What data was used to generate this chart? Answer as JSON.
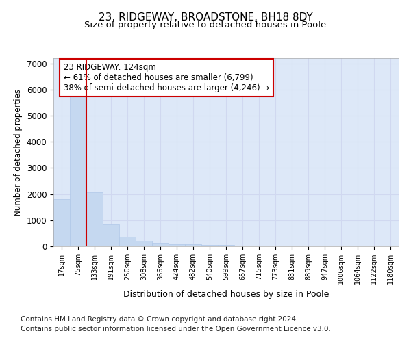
{
  "title": "23, RIDGEWAY, BROADSTONE, BH18 8DY",
  "subtitle": "Size of property relative to detached houses in Poole",
  "xlabel": "Distribution of detached houses by size in Poole",
  "ylabel": "Number of detached properties",
  "categories": [
    "17sqm",
    "75sqm",
    "133sqm",
    "191sqm",
    "250sqm",
    "308sqm",
    "366sqm",
    "424sqm",
    "482sqm",
    "540sqm",
    "599sqm",
    "657sqm",
    "715sqm",
    "773sqm",
    "831sqm",
    "889sqm",
    "947sqm",
    "1006sqm",
    "1064sqm",
    "1122sqm",
    "1180sqm"
  ],
  "values": [
    1800,
    5750,
    2060,
    830,
    370,
    210,
    135,
    90,
    80,
    65,
    50,
    0,
    0,
    0,
    0,
    0,
    0,
    0,
    0,
    0,
    0
  ],
  "bar_color": "#c5d8f0",
  "bar_edge_color": "#c5d8f0",
  "red_line_color": "#cc0000",
  "red_line_index": 2,
  "annotation_text": "23 RIDGEWAY: 124sqm\n← 61% of detached houses are smaller (6,799)\n38% of semi-detached houses are larger (4,246) →",
  "annotation_box_color": "#ffffff",
  "annotation_box_edge_color": "#cc0000",
  "ylim": [
    0,
    7200
  ],
  "yticks": [
    0,
    1000,
    2000,
    3000,
    4000,
    5000,
    6000,
    7000
  ],
  "grid_color": "#d0d8f0",
  "background_color": "#dde8f8",
  "footer_line1": "Contains HM Land Registry data © Crown copyright and database right 2024.",
  "footer_line2": "Contains public sector information licensed under the Open Government Licence v3.0.",
  "title_fontsize": 11,
  "subtitle_fontsize": 9.5,
  "footer_fontsize": 7.5
}
